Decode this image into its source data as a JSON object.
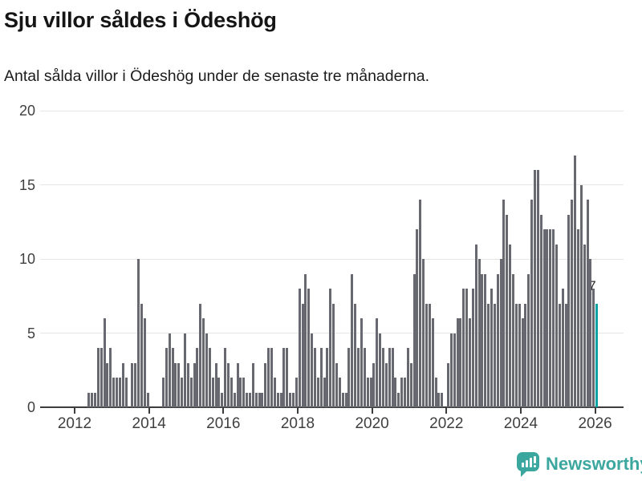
{
  "header": {
    "title": "Sju villor såldes i Ödeshög",
    "subtitle": "Antal sålda villor i Ödeshög under de senaste tre månaderna."
  },
  "chart_data": {
    "type": "bar",
    "title": "Sju villor såldes i Ödeshög",
    "subtitle": "Antal sålda villor i Ödeshög under de senaste tre månaderna.",
    "period": "monthly",
    "start_month": "2012-01",
    "end_month": "2026-01",
    "x_tick_labels": [
      "2012",
      "2014",
      "2016",
      "2018",
      "2020",
      "2022",
      "2024",
      "2026"
    ],
    "y_ticks": [
      0,
      5,
      10,
      15,
      20
    ],
    "ylim": [
      0,
      20
    ],
    "grid": "horizontal",
    "bar_color": "#686871",
    "highlight_color": "#07a2a1",
    "highlight_last_bar": true,
    "annotation": {
      "text": "7",
      "value": 7,
      "month": "2026-01"
    },
    "series": [
      {
        "name": "Antal sålda villor",
        "values_by_year": {
          "2012": [
            0,
            0,
            0,
            0,
            1,
            1,
            1,
            4,
            4,
            6,
            3,
            4
          ],
          "2013": [
            2,
            2,
            2,
            3,
            2,
            0,
            3,
            3,
            10,
            7,
            6,
            1
          ],
          "2014": [
            0,
            0,
            0,
            0,
            2,
            4,
            5,
            4,
            3,
            3,
            2,
            5
          ],
          "2015": [
            3,
            2,
            3,
            4,
            7,
            6,
            5,
            4,
            2,
            3,
            2,
            1
          ],
          "2016": [
            4,
            3,
            2,
            1,
            3,
            2,
            2,
            1,
            1,
            3,
            1,
            1
          ],
          "2017": [
            1,
            3,
            4,
            4,
            2,
            1,
            1,
            4,
            4,
            1,
            1,
            2
          ],
          "2018": [
            8,
            7,
            9,
            8,
            5,
            4,
            2,
            4,
            2,
            4,
            8,
            7
          ],
          "2019": [
            3,
            2,
            1,
            1,
            4,
            9,
            7,
            4,
            6,
            4,
            2,
            2
          ],
          "2020": [
            3,
            6,
            5,
            4,
            3,
            4,
            4,
            2,
            1,
            2,
            2,
            4
          ],
          "2021": [
            3,
            9,
            12,
            14,
            10,
            7,
            7,
            6,
            2,
            1,
            1,
            0
          ],
          "2022": [
            3,
            5,
            5,
            6,
            6,
            8,
            8,
            6,
            8,
            11,
            10,
            9
          ],
          "2023": [
            9,
            7,
            8,
            7,
            9,
            10,
            14,
            13,
            11,
            9,
            7,
            7
          ],
          "2024": [
            6,
            7,
            9,
            14,
            16,
            16,
            13,
            12,
            12,
            12,
            12,
            11
          ],
          "2025": [
            7,
            8,
            7,
            13,
            14,
            17,
            12,
            15,
            11,
            14,
            10,
            8
          ],
          "2026": [
            7
          ]
        }
      }
    ]
  },
  "footer": {
    "brand": "Newsworthy",
    "brand_color": "#3ba79e"
  }
}
